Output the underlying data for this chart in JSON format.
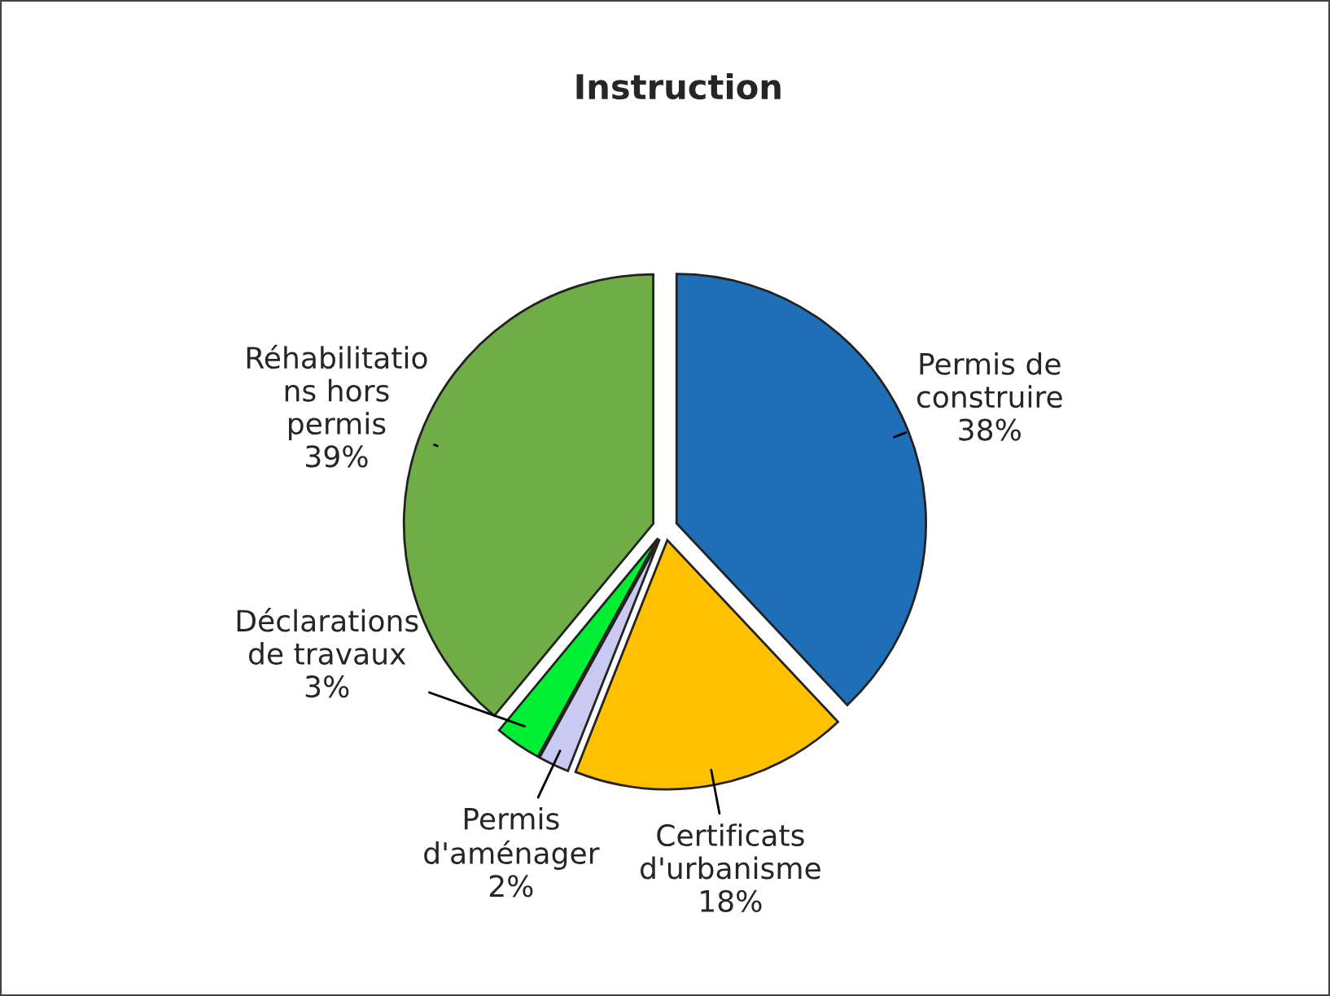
{
  "chart_data": {
    "type": "pie",
    "title": "Instruction",
    "categories": [
      "Permis de\nconstruire",
      "Certificats\nd'urbanisme",
      "Permis\nd'aménager",
      "Déclarations\nde travaux",
      "Réhabilitatio\nns hors\npermis"
    ],
    "values": [
      38,
      18,
      2,
      3,
      39
    ],
    "value_labels": [
      "38%",
      "18%",
      "2%",
      "3%",
      "39%"
    ],
    "colors": [
      "#1f6fb8",
      "#ffc000",
      "#c9c9f2",
      "#00ee33",
      "#70ad47"
    ]
  }
}
